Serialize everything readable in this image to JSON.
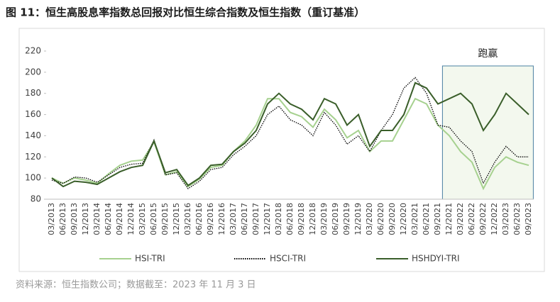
{
  "chart_data": {
    "type": "line",
    "title": "图 11：恒生高股息率指数总回报对比恒生综合指数及恒生指数（重订基准）",
    "source": "资料来源：恒生指数公司；数据截至：2023 年 11 月 3 日",
    "categories": [
      "03/2013",
      "06/2013",
      "09/2013",
      "12/2013",
      "03/2014",
      "06/2014",
      "09/2014",
      "12/2014",
      "03/2015",
      "06/2015",
      "09/2015",
      "12/2015",
      "03/2016",
      "06/2016",
      "09/2016",
      "12/2016",
      "03/2017",
      "06/2017",
      "09/2017",
      "12/2017",
      "03/2018",
      "06/2018",
      "09/2018",
      "12/2018",
      "03/2019",
      "06/2019",
      "09/2019",
      "12/2019",
      "03/2020",
      "06/2020",
      "09/2020",
      "12/2020",
      "03/2021",
      "06/2021",
      "09/2021",
      "12/2021",
      "03/2022",
      "06/2022",
      "09/2022",
      "12/2022",
      "03/2023",
      "06/2023",
      "09/2023"
    ],
    "series": [
      {
        "name": "HSI-TRI",
        "color": "#a6d18f",
        "dash": "solid",
        "values": [
          100,
          95,
          100,
          98,
          95,
          104,
          112,
          116,
          117,
          134,
          103,
          106,
          92,
          99,
          110,
          112,
          125,
          135,
          150,
          175,
          175,
          162,
          158,
          148,
          165,
          155,
          138,
          145,
          125,
          135,
          135,
          155,
          175,
          170,
          150,
          140,
          125,
          115,
          90,
          110,
          120,
          115,
          112
        ]
      },
      {
        "name": "HSCI-TRI",
        "color": "#000000",
        "dash": "dotted",
        "values": [
          98,
          95,
          101,
          100,
          96,
          103,
          110,
          113,
          114,
          136,
          103,
          105,
          90,
          97,
          108,
          110,
          122,
          130,
          140,
          160,
          168,
          155,
          150,
          140,
          162,
          150,
          132,
          140,
          125,
          145,
          160,
          185,
          195,
          180,
          150,
          148,
          135,
          125,
          95,
          115,
          130,
          120,
          120
        ]
      },
      {
        "name": "HSHDYI-TRI",
        "color": "#3a5e2a",
        "dash": "solid",
        "values": [
          100,
          92,
          97,
          96,
          94,
          100,
          106,
          110,
          112,
          135,
          105,
          108,
          93,
          100,
          112,
          113,
          125,
          133,
          145,
          170,
          180,
          170,
          165,
          155,
          175,
          170,
          150,
          160,
          130,
          145,
          145,
          160,
          190,
          185,
          170,
          175,
          180,
          170,
          145,
          160,
          180,
          170,
          160
        ]
      }
    ],
    "highlight": {
      "label": "跑赢",
      "from": "12/2021",
      "to": "09/2023"
    },
    "ylim": [
      80,
      220
    ],
    "yticks": [
      80,
      100,
      120,
      140,
      160,
      180,
      200,
      220
    ]
  }
}
